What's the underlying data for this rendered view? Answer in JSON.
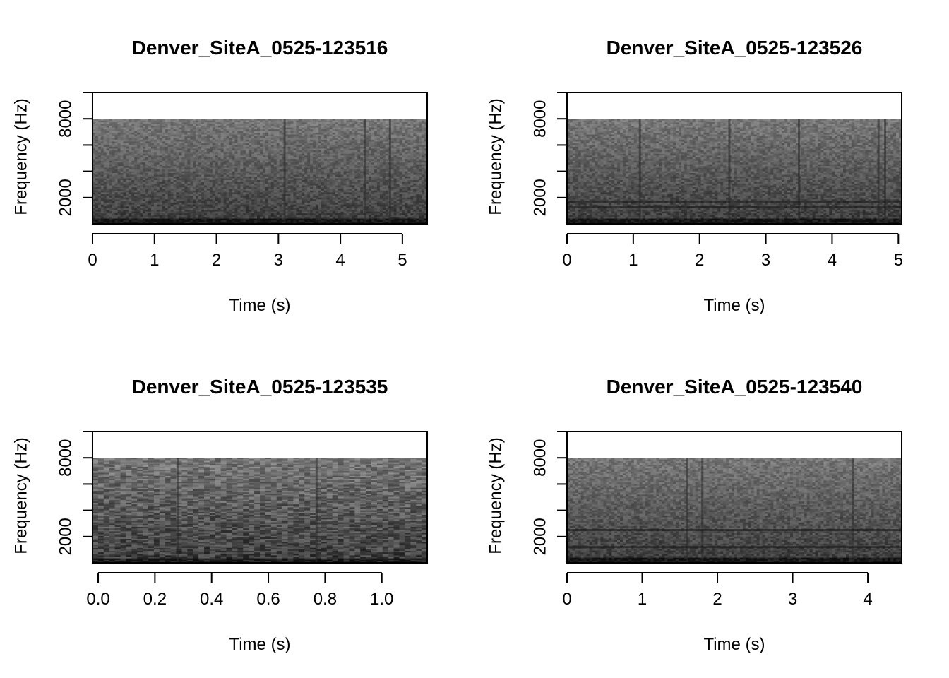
{
  "chart_data": [
    {
      "type": "heatmap",
      "title": "Denver_SiteA_0525-123516",
      "xlabel": "Time (s)",
      "ylabel": "Frequency (Hz)",
      "xlim": [
        0,
        5.4
      ],
      "ylim": [
        0,
        10000
      ],
      "spectrogram_max_freq": 8000,
      "x_ticks": [
        0,
        1,
        2,
        3,
        4,
        5
      ],
      "x_tick_labels": [
        "0",
        "1",
        "2",
        "3",
        "4",
        "5"
      ],
      "y_ticks": [
        2000,
        4000,
        6000,
        8000,
        10000
      ],
      "y_tick_labels": [
        "2000",
        "8000"
      ],
      "y_labeled_ticks": [
        2000,
        8000
      ],
      "vertical_features_s": [
        3.1,
        4.4,
        4.8
      ],
      "horizontal_features_hz": []
    },
    {
      "type": "heatmap",
      "title": "Denver_SiteA_0525-123526",
      "xlabel": "Time (s)",
      "ylabel": "Frequency (Hz)",
      "xlim": [
        0,
        5.05
      ],
      "ylim": [
        0,
        10000
      ],
      "spectrogram_max_freq": 8000,
      "x_ticks": [
        0,
        1,
        2,
        3,
        4,
        5
      ],
      "x_tick_labels": [
        "0",
        "1",
        "2",
        "3",
        "4",
        "5"
      ],
      "y_ticks": [
        2000,
        4000,
        6000,
        8000,
        10000
      ],
      "y_tick_labels": [
        "2000",
        "8000"
      ],
      "y_labeled_ticks": [
        2000,
        8000
      ],
      "vertical_features_s": [
        1.1,
        2.45,
        3.5,
        4.7,
        4.8
      ],
      "horizontal_features_hz": [
        1300,
        1700
      ]
    },
    {
      "type": "heatmap",
      "title": "Denver_SiteA_0525-123535",
      "xlabel": "Time (s)",
      "ylabel": "Frequency (Hz)",
      "xlim": [
        -0.02,
        1.16
      ],
      "ylim": [
        0,
        10000
      ],
      "spectrogram_max_freq": 8000,
      "x_ticks": [
        0.0,
        0.2,
        0.4,
        0.6,
        0.8,
        1.0
      ],
      "x_tick_labels": [
        "0.0",
        "0.2",
        "0.4",
        "0.6",
        "0.8",
        "1.0"
      ],
      "y_ticks": [
        2000,
        4000,
        6000,
        8000,
        10000
      ],
      "y_tick_labels": [
        "2000",
        "8000"
      ],
      "y_labeled_ticks": [
        2000,
        8000
      ],
      "vertical_features_s": [
        0.28,
        0.77
      ],
      "horizontal_features_hz": []
    },
    {
      "type": "heatmap",
      "title": "Denver_SiteA_0525-123540",
      "xlabel": "Time (s)",
      "ylabel": "Frequency (Hz)",
      "xlim": [
        0,
        4.45
      ],
      "ylim": [
        0,
        10000
      ],
      "spectrogram_max_freq": 8000,
      "x_ticks": [
        0,
        1,
        2,
        3,
        4
      ],
      "x_tick_labels": [
        "0",
        "1",
        "2",
        "3",
        "4"
      ],
      "y_ticks": [
        2000,
        4000,
        6000,
        8000,
        10000
      ],
      "y_tick_labels": [
        "2000",
        "8000"
      ],
      "y_labeled_ticks": [
        2000,
        8000
      ],
      "vertical_features_s": [
        1.6,
        1.8,
        3.8
      ],
      "horizontal_features_hz": [
        1200,
        2500
      ]
    }
  ],
  "colors": {
    "background": "#ffffff",
    "axis": "#000000",
    "spectrogram_light": "#a0a0a0",
    "spectrogram_dark": "#1e1e1e"
  }
}
